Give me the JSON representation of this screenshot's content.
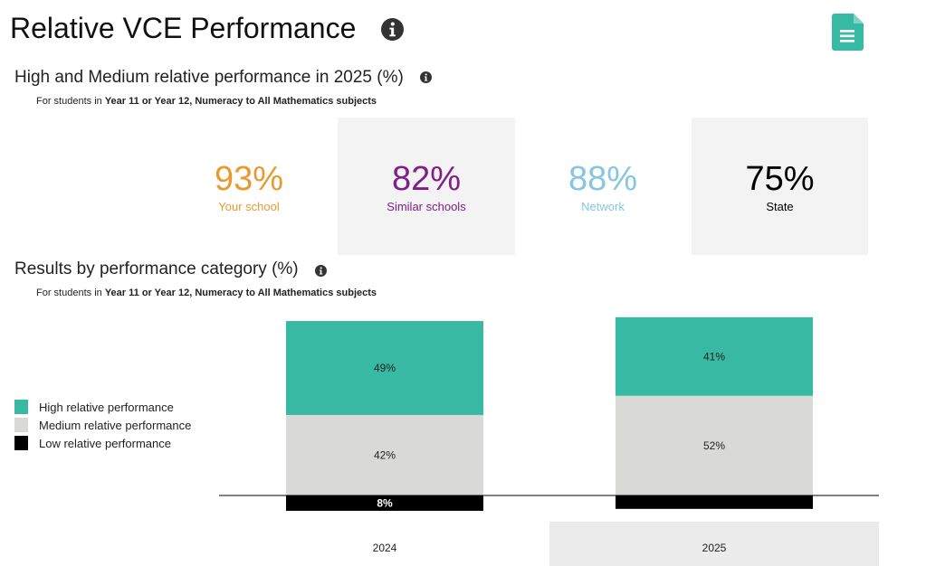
{
  "page": {
    "title": "Relative VCE Performance",
    "info_icon": "info-icon",
    "report_icon": "document-icon"
  },
  "summary": {
    "title": "High and Medium relative performance in 2025 (%)",
    "subtitle_prefix": "For students in ",
    "subtitle_bold": "Year 11 or Year 12, Numeracy to All Mathematics subjects",
    "cards": [
      {
        "value": "93%",
        "label": "Your school",
        "color": "#e89a2e"
      },
      {
        "value": "82%",
        "label": "Similar schools",
        "color": "#7f1f8a"
      },
      {
        "value": "88%",
        "label": "Network",
        "color": "#86c5e3"
      },
      {
        "value": "75%",
        "label": "State",
        "color": "#000000"
      }
    ]
  },
  "results": {
    "title": "Results by performance category (%)",
    "subtitle_prefix": "For students in ",
    "subtitle_bold": "Year 11 or Year 12, Numeracy to All Mathematics subjects"
  },
  "legend": [
    {
      "label": "High relative performance",
      "color": "#38b9a4"
    },
    {
      "label": "Medium relative performance",
      "color": "#d9d9d7"
    },
    {
      "label": "Low relative performance",
      "color": "#000000"
    }
  ],
  "chart_data": {
    "type": "bar",
    "stacked": true,
    "categories": [
      "2024",
      "2025"
    ],
    "highlighted_category": "2025",
    "series": [
      {
        "name": "High relative performance",
        "values": [
          49,
          41
        ],
        "labels": [
          "49%",
          "41%"
        ],
        "color": "#38b9a4"
      },
      {
        "name": "Medium relative performance",
        "values": [
          42,
          52
        ],
        "labels": [
          "42%",
          "52%"
        ],
        "color": "#d9d9d7"
      },
      {
        "name": "Low relative performance",
        "values": [
          8,
          7
        ],
        "labels": [
          "8%",
          ""
        ],
        "color": "#000000"
      }
    ],
    "low_below_axis": true,
    "legend_position": "left",
    "grid": false
  }
}
